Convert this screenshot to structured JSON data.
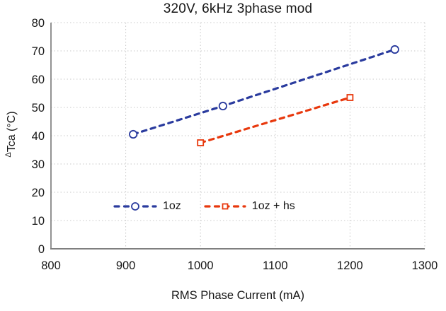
{
  "chart_data": {
    "type": "line",
    "title": "320V, 6kHz 3phase mod",
    "xlabel": "RMS Phase Current (mA)",
    "ylabel": "ΔTca (°C)",
    "ylabel_sup": "Δ",
    "ylabel_main": "Tca (°C)",
    "xlim": [
      800,
      1300
    ],
    "ylim": [
      0,
      80
    ],
    "xticks": [
      800,
      900,
      1000,
      1100,
      1200,
      1300
    ],
    "yticks": [
      0,
      10,
      20,
      30,
      40,
      50,
      60,
      70,
      80
    ],
    "grid": "dotted both axes",
    "legend_position": "inside, lower-left, no border",
    "series": [
      {
        "name": "1oz",
        "color": "#2a3b9e",
        "marker": "open-circle",
        "line_style": "dashed",
        "x": [
          910,
          1030,
          1260
        ],
        "y": [
          40.5,
          50.5,
          70.5
        ]
      },
      {
        "name": "1oz + hs",
        "color": "#e8380d",
        "marker": "open-square",
        "line_style": "dashed",
        "x": [
          1000,
          1200
        ],
        "y": [
          37.5,
          53.5
        ]
      }
    ]
  },
  "colors": {
    "grid": "#c9c9c9",
    "axis": "#7f7f7f",
    "text": "#161616",
    "background": "#ffffff",
    "marker_fill": "#ffffff"
  }
}
